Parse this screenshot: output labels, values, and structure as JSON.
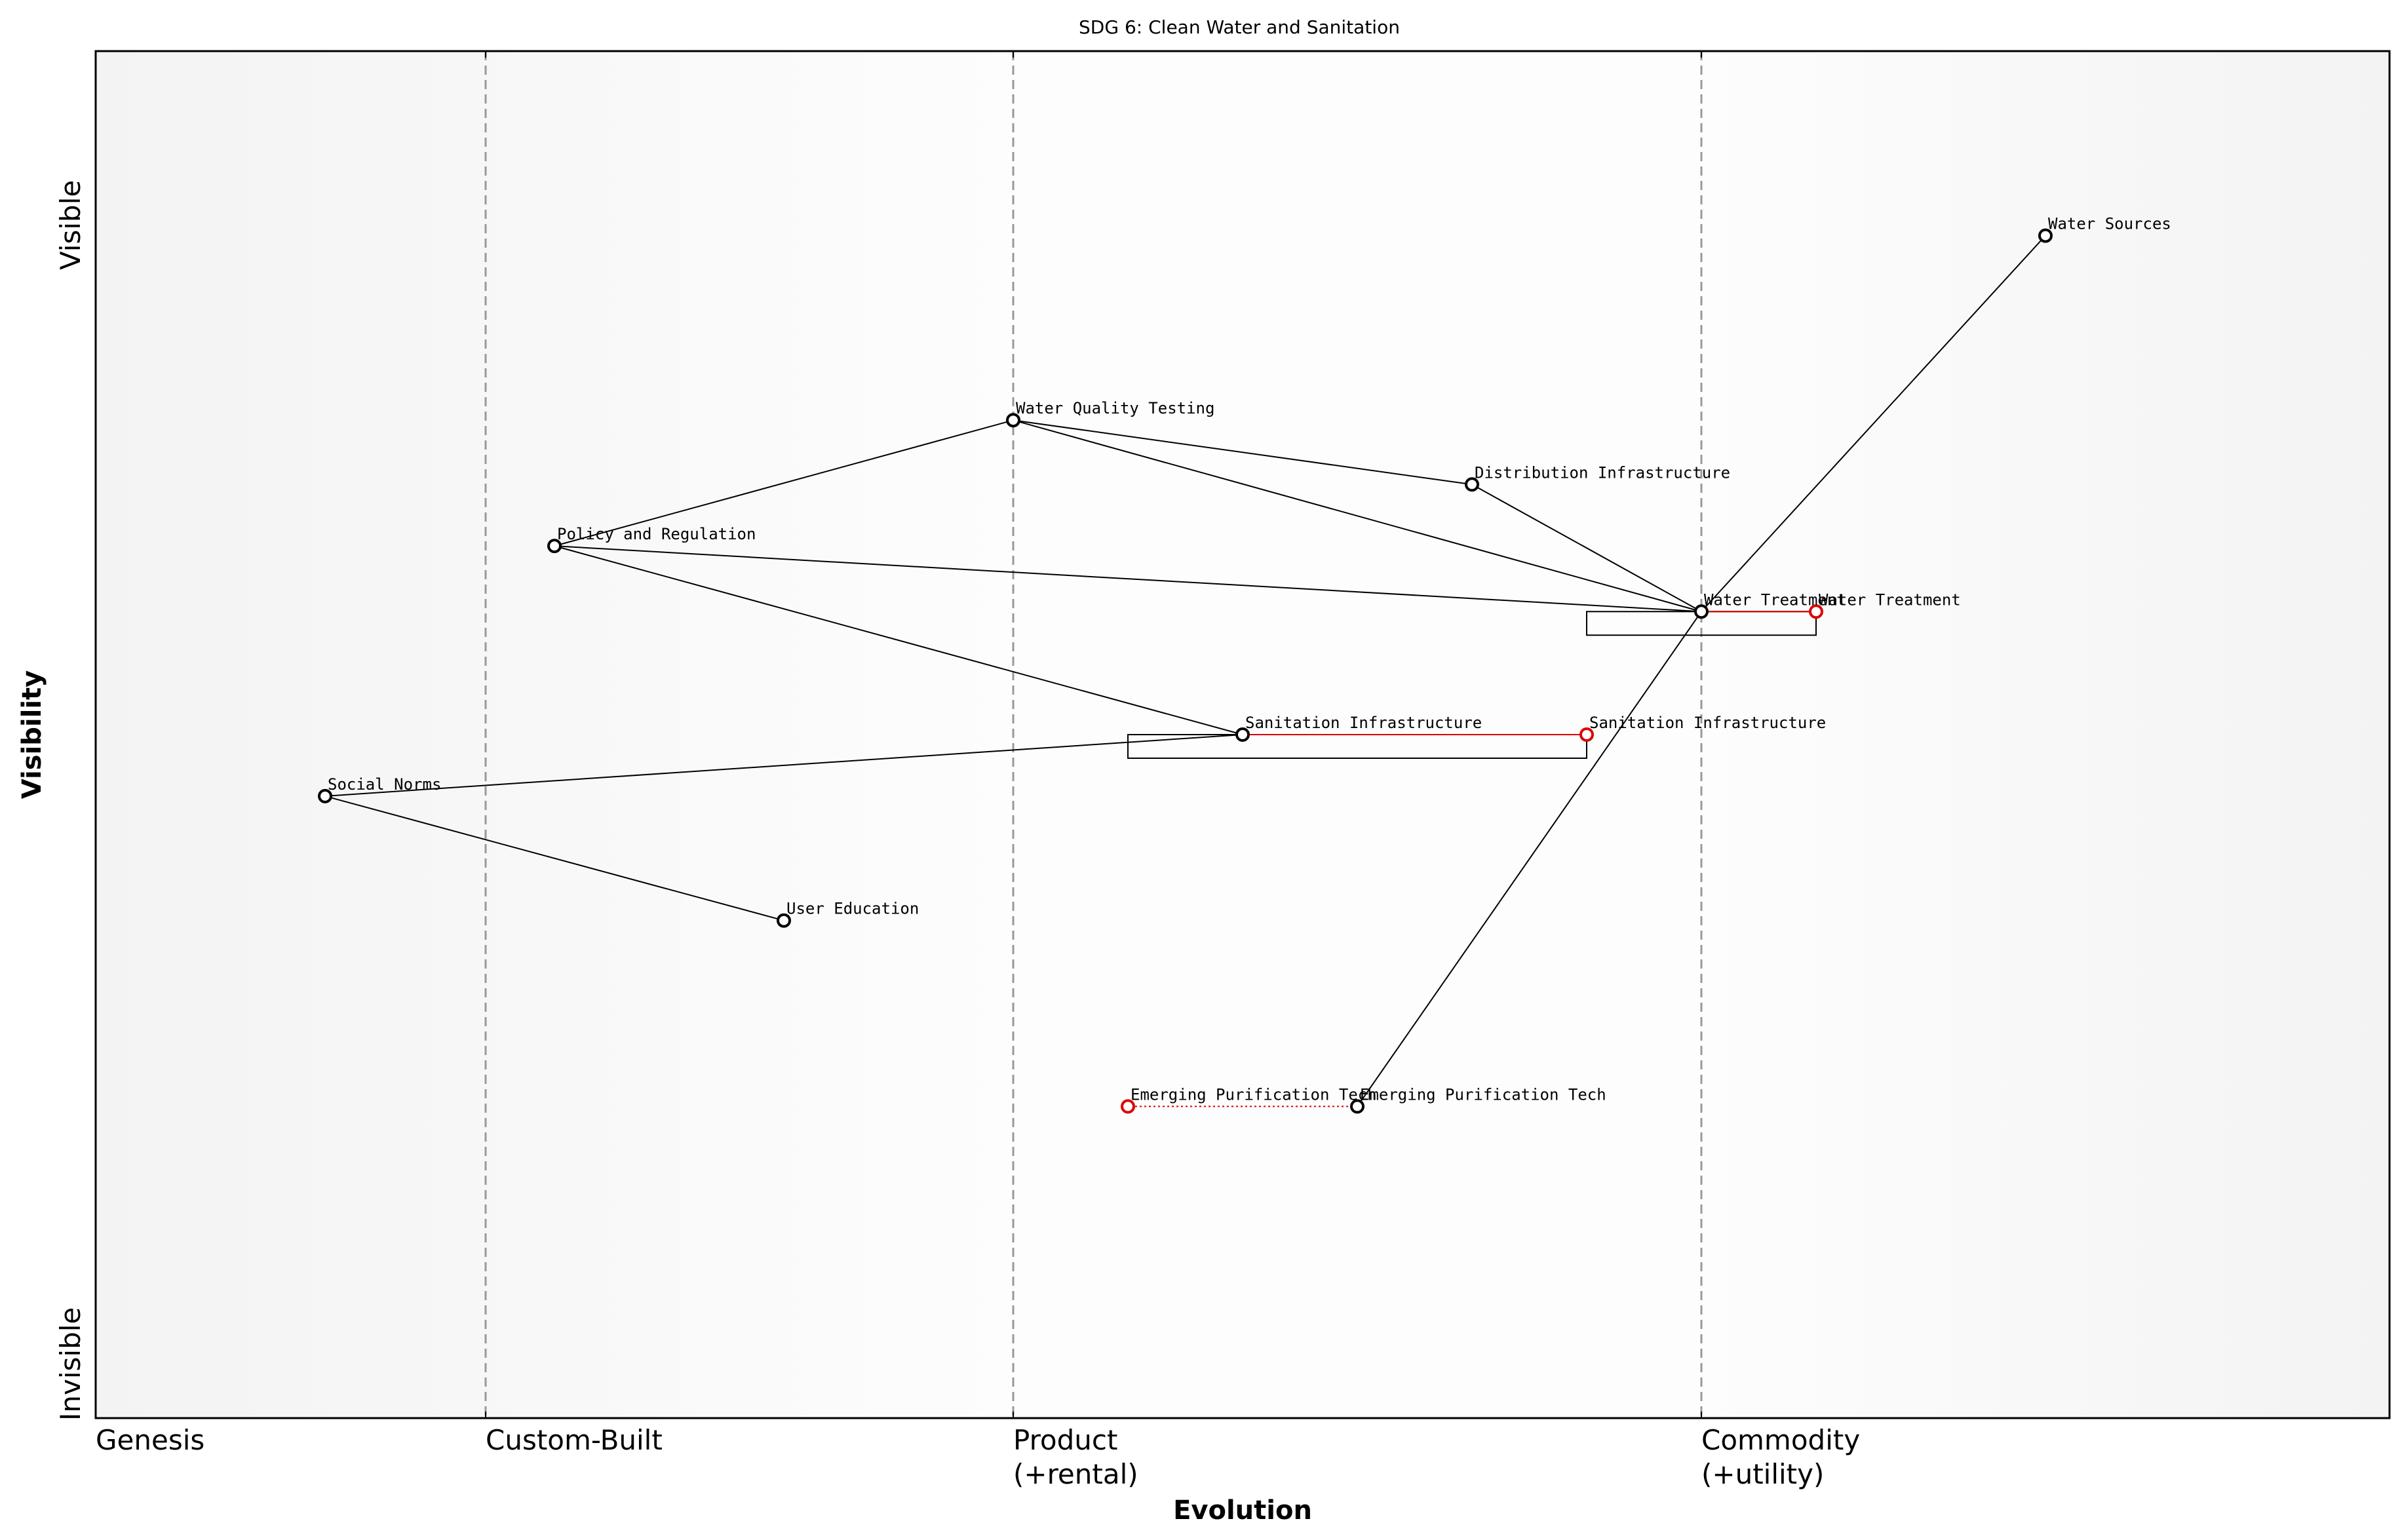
{
  "title": "SDG 6: Clean Water and Sanitation",
  "x_axis_title": "Evolution",
  "y_axis_title": "Visibility",
  "y_top_label": "Visible",
  "y_bottom_label": "Invisible",
  "stages": [
    {
      "line1": "Genesis",
      "line2": ""
    },
    {
      "line1": "Custom-Built",
      "line2": ""
    },
    {
      "line1": "Product",
      "line2": "(+rental)"
    },
    {
      "line1": "Commodity",
      "line2": "(+utility)"
    }
  ],
  "colors": {
    "current_node": "#000000",
    "future_node": "#dd0000",
    "edge": "#000000",
    "divider": "#999999"
  },
  "chart_data": {
    "type": "scatter",
    "xlim": [
      0,
      1
    ],
    "ylim": [
      0,
      1
    ],
    "stage_boundaries": [
      0.17,
      0.4,
      0.7
    ],
    "components": [
      {
        "id": "water_sources",
        "label": "Water Sources",
        "evolution": 0.85,
        "visibility": 0.865
      },
      {
        "id": "water_quality",
        "label": "Water Quality Testing",
        "evolution": 0.4,
        "visibility": 0.73
      },
      {
        "id": "distribution",
        "label": "Distribution Infrastructure",
        "evolution": 0.6,
        "visibility": 0.683
      },
      {
        "id": "policy",
        "label": "Policy and Regulation",
        "evolution": 0.2,
        "visibility": 0.638
      },
      {
        "id": "water_treatment",
        "label": "Water Treatment",
        "evolution": 0.7,
        "visibility": 0.59
      },
      {
        "id": "sanitation",
        "label": "Sanitation Infrastructure",
        "evolution": 0.5,
        "visibility": 0.5
      },
      {
        "id": "social_norms",
        "label": "Social Norms",
        "evolution": 0.1,
        "visibility": 0.455
      },
      {
        "id": "user_education",
        "label": "User Education",
        "evolution": 0.3,
        "visibility": 0.364
      },
      {
        "id": "emerging_tech",
        "label": "Emerging Purification Tech",
        "evolution": 0.55,
        "visibility": 0.228
      }
    ],
    "evolved_components": [
      {
        "id": "water_treatment_future",
        "label": "Water Treatment",
        "evolution": 0.75,
        "visibility": 0.59,
        "from": "water_treatment",
        "line": "solid"
      },
      {
        "id": "sanitation_future",
        "label": "Sanitation Infrastructure",
        "evolution": 0.65,
        "visibility": 0.5,
        "from": "sanitation",
        "line": "solid"
      },
      {
        "id": "emerging_tech_future",
        "label": "Emerging Purification Tech",
        "evolution": 0.45,
        "visibility": 0.228,
        "from": "emerging_tech",
        "line": "dotted"
      }
    ],
    "links": [
      [
        "policy",
        "water_quality"
      ],
      [
        "policy",
        "water_treatment"
      ],
      [
        "policy",
        "sanitation"
      ],
      [
        "water_quality",
        "distribution"
      ],
      [
        "water_quality",
        "water_treatment"
      ],
      [
        "distribution",
        "water_treatment"
      ],
      [
        "water_treatment",
        "water_sources"
      ],
      [
        "water_treatment",
        "emerging_tech"
      ],
      [
        "social_norms",
        "sanitation"
      ],
      [
        "social_norms",
        "user_education"
      ]
    ]
  }
}
